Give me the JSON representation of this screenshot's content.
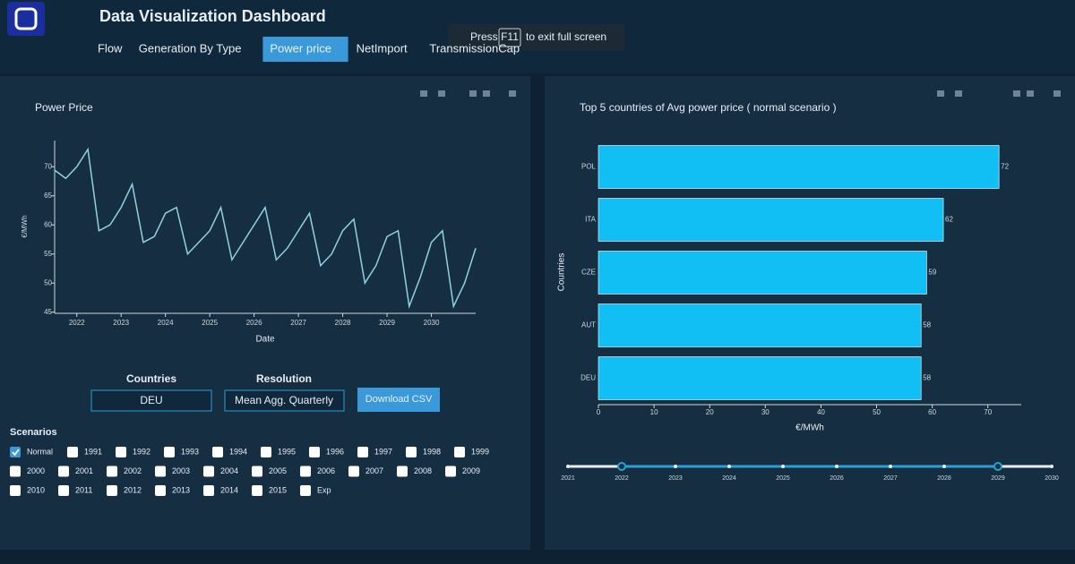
{
  "header": {
    "title": "Data Visualization Dashboard"
  },
  "tabs": [
    "Flow",
    "Generation By Type",
    "Power price",
    "NetImport",
    "TransmissionCap"
  ],
  "active_tab": 2,
  "toast": {
    "before": "Press",
    "key": "F11",
    "after": "to exit full screen"
  },
  "chart_data": [
    {
      "type": "line",
      "title": "Power Price",
      "x_label": "Date",
      "y_label": "€/MWh",
      "color": "#8fd3e0",
      "x": [
        2021.5,
        2021.75,
        2022,
        2022.25,
        2022.5,
        2022.75,
        2023,
        2023.25,
        2023.5,
        2023.75,
        2024,
        2024.25,
        2024.5,
        2024.75,
        2025,
        2025.25,
        2025.5,
        2025.75,
        2026,
        2026.25,
        2026.5,
        2026.75,
        2027,
        2027.25,
        2027.5,
        2027.75,
        2028,
        2028.25,
        2028.5,
        2028.75,
        2029,
        2029.25,
        2029.5,
        2029.75,
        2030,
        2030.25,
        2030.5,
        2030.75,
        2031
      ],
      "values": [
        69.4,
        68,
        70,
        73,
        59,
        60,
        63,
        67,
        57,
        58,
        62,
        63,
        55,
        57,
        59,
        63,
        54,
        57,
        60,
        63,
        54,
        56,
        59,
        62,
        53,
        55,
        59,
        61,
        50,
        53,
        58,
        59,
        46,
        51,
        57,
        59,
        46,
        50,
        56
      ],
      "xlim": [
        2021.5,
        2031
      ],
      "xticks": [
        2022,
        2023,
        2024,
        2025,
        2026,
        2027,
        2028,
        2029,
        2030
      ],
      "ylim": [
        44.8,
        74.5
      ],
      "yticks": [
        45,
        50,
        55,
        60,
        65,
        70
      ]
    },
    {
      "type": "hbar",
      "title": "Top 5 countries of Avg power price ( normal scenario )",
      "x_label": "€/MWh",
      "y_label": "Countries",
      "color": "#12bff5",
      "categories": [
        "POL",
        "ITA",
        "CZE",
        "AUT",
        "DEU"
      ],
      "values": [
        72,
        62,
        59,
        58,
        58
      ],
      "xlim": [
        0,
        76
      ],
      "xticks": [
        0,
        10,
        20,
        30,
        40,
        50,
        60,
        70
      ]
    }
  ],
  "controls": {
    "countries_label": "Countries",
    "country": "DEU",
    "resolution_label": "Resolution",
    "resolution": "Mean Agg. Quarterly",
    "download": "Download CSV"
  },
  "scenarios": {
    "title": "Scenarios",
    "options": [
      "Normal",
      "1991",
      "1992",
      "1993",
      "1994",
      "1995",
      "1996",
      "1997",
      "1998",
      "1999",
      "2000",
      "2001",
      "2002",
      "2003",
      "2004",
      "2005",
      "2006",
      "2007",
      "2008",
      "2009",
      "2010",
      "2011",
      "2012",
      "2013",
      "2014",
      "2015",
      "Exp"
    ],
    "checked": [
      0
    ]
  },
  "slider": {
    "marks": [
      2021,
      2022,
      2023,
      2024,
      2025,
      2026,
      2027,
      2028,
      2029,
      2030
    ],
    "range": [
      2022,
      2029
    ]
  }
}
